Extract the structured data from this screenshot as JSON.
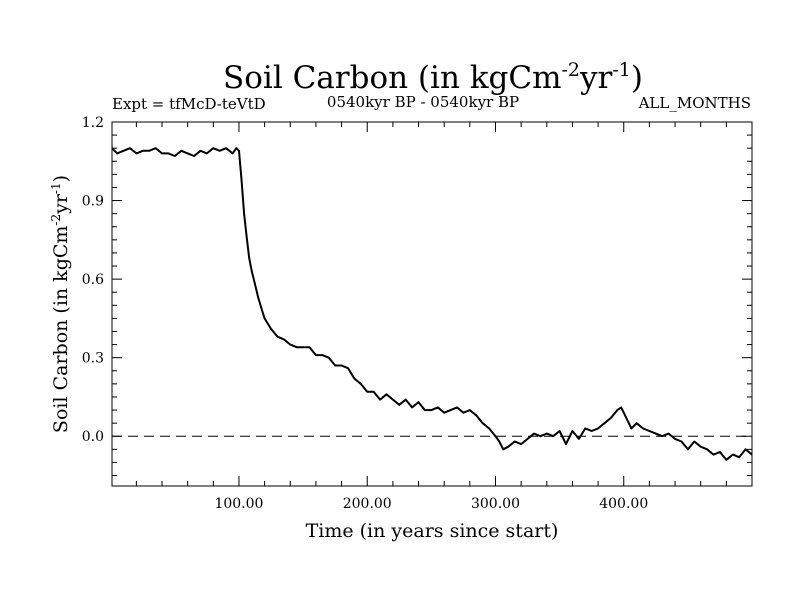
{
  "chart_data": {
    "type": "line",
    "title_main": "Soil Carbon (in kgCm",
    "title_sup1": "-2",
    "title_mid": "yr",
    "title_sup2": "-1",
    "title_end": ")",
    "subtitle_left": "Expt = tfMcD-teVtD",
    "subtitle_center": "0540kyr BP - 0540kyr BP",
    "subtitle_right": "ALL_MONTHS",
    "xlabel": "Time (in years since start)",
    "ylabel_main": "Soil Carbon (in kgCm",
    "ylabel_sup1": "-2",
    "ylabel_mid": "yr",
    "ylabel_sup2": "-1",
    "ylabel_end": ")",
    "xlim": [
      1,
      500
    ],
    "ylim": [
      -0.19,
      1.2
    ],
    "x_ticks": [
      {
        "value": 100,
        "label": "100.00"
      },
      {
        "value": 200,
        "label": "200.00"
      },
      {
        "value": 300,
        "label": "300.00"
      },
      {
        "value": 400,
        "label": "400.00"
      }
    ],
    "y_ticks": [
      {
        "value": 1.2,
        "label": "1.2"
      },
      {
        "value": 0.9,
        "label": "0.9"
      },
      {
        "value": 0.6,
        "label": "0.6"
      },
      {
        "value": 0.3,
        "label": "0.3"
      },
      {
        "value": 0.0,
        "label": "0.0"
      }
    ],
    "reference_line": {
      "y": 0.0,
      "style": "dashed"
    },
    "grid": false,
    "series": [
      {
        "x": [
          1,
          5,
          10,
          15,
          20,
          25,
          30,
          35,
          40,
          45,
          50,
          55,
          60,
          65,
          70,
          75,
          80,
          85,
          90,
          95,
          98,
          100,
          102,
          104,
          106,
          108,
          110,
          112,
          115,
          118,
          120,
          125,
          130,
          135,
          140,
          145,
          150,
          155,
          160,
          165,
          170,
          175,
          180,
          185,
          190,
          195,
          200,
          205,
          210,
          215,
          220,
          225,
          230,
          235,
          240,
          245,
          250,
          255,
          260,
          265,
          270,
          275,
          280,
          285,
          290,
          295,
          300,
          303,
          306,
          310,
          315,
          320,
          325,
          330,
          335,
          340,
          345,
          350,
          355,
          360,
          365,
          370,
          375,
          380,
          385,
          390,
          395,
          398,
          402,
          406,
          410,
          415,
          420,
          425,
          430,
          435,
          440,
          445,
          450,
          455,
          460,
          465,
          470,
          475,
          480,
          485,
          490,
          495,
          500
        ],
        "y": [
          1.1,
          1.08,
          1.09,
          1.1,
          1.08,
          1.09,
          1.09,
          1.1,
          1.08,
          1.08,
          1.07,
          1.09,
          1.08,
          1.07,
          1.09,
          1.08,
          1.1,
          1.09,
          1.1,
          1.08,
          1.1,
          1.09,
          0.98,
          0.85,
          0.76,
          0.68,
          0.63,
          0.59,
          0.53,
          0.48,
          0.45,
          0.41,
          0.38,
          0.37,
          0.35,
          0.34,
          0.34,
          0.34,
          0.31,
          0.31,
          0.3,
          0.27,
          0.27,
          0.26,
          0.22,
          0.2,
          0.17,
          0.17,
          0.14,
          0.16,
          0.14,
          0.12,
          0.14,
          0.11,
          0.13,
          0.1,
          0.1,
          0.11,
          0.09,
          0.1,
          0.11,
          0.09,
          0.1,
          0.08,
          0.05,
          0.03,
          0.0,
          -0.02,
          -0.05,
          -0.04,
          -0.02,
          -0.03,
          -0.01,
          0.01,
          0.0,
          0.01,
          0.0,
          0.02,
          -0.03,
          0.02,
          -0.01,
          0.03,
          0.02,
          0.03,
          0.05,
          0.07,
          0.1,
          0.11,
          0.07,
          0.03,
          0.05,
          0.03,
          0.02,
          0.01,
          0.0,
          0.01,
          -0.01,
          -0.02,
          -0.05,
          -0.02,
          -0.04,
          -0.05,
          -0.07,
          -0.06,
          -0.09,
          -0.07,
          -0.08,
          -0.05,
          -0.07
        ]
      }
    ]
  }
}
